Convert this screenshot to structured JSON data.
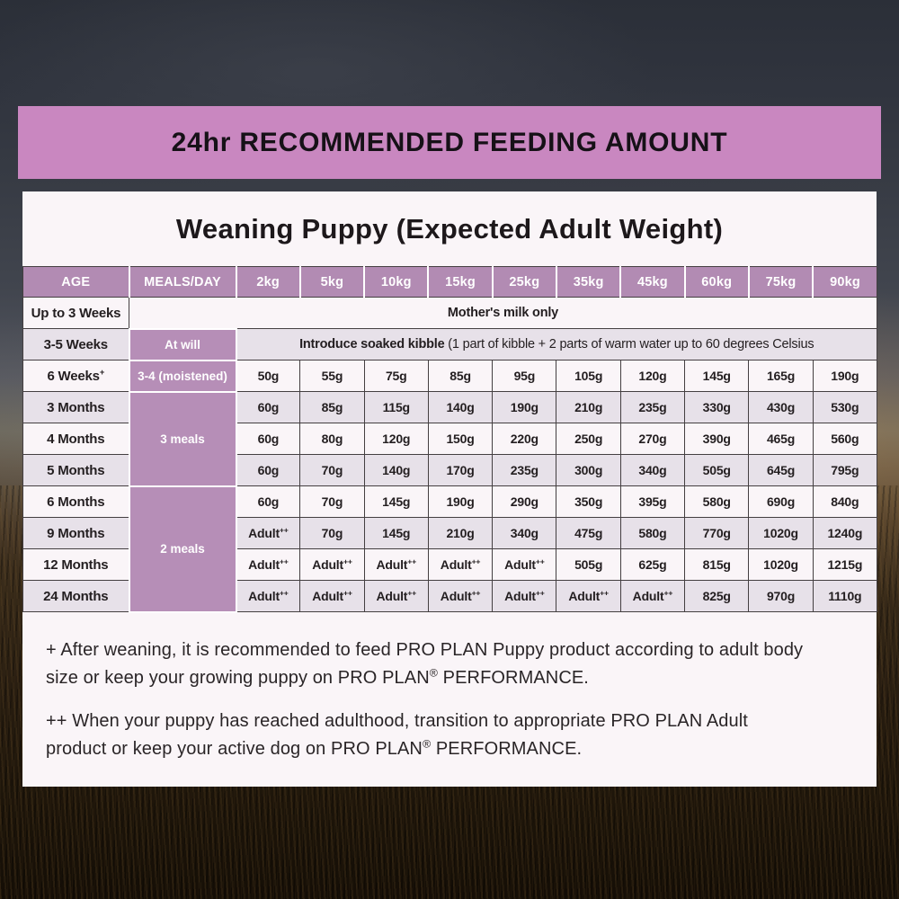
{
  "banner": {
    "title": "24hr RECOMMENDED FEEDING AMOUNT"
  },
  "card": {
    "title": "Weaning Puppy (Expected Adult Weight)",
    "table": {
      "headers": [
        "AGE",
        "MEALS/DAY",
        "2kg",
        "5kg",
        "10kg",
        "15kg",
        "25kg",
        "35kg",
        "45kg",
        "60kg",
        "75kg",
        "90kg"
      ],
      "body_rows": [
        {
          "type": "milk",
          "age": "Up to 3 Weeks",
          "note": "Mother's milk only"
        },
        {
          "type": "kibble",
          "age": "3-5 Weeks",
          "meals": "At will",
          "note_bold": "Introduce soaked kibble",
          "note_rest": " (1 part of kibble + 2 parts of warm water up to 60 degrees Celsius"
        },
        {
          "type": "data",
          "age": "6 Weeks",
          "age_sup": "+",
          "meals": "3-4 (moistened)",
          "meals_rowspan": 1,
          "values": [
            "50g",
            "55g",
            "75g",
            "85g",
            "95g",
            "105g",
            "120g",
            "145g",
            "165g",
            "190g"
          ]
        },
        {
          "type": "data",
          "age": "3 Months",
          "meals": "3 meals",
          "meals_rowspan": 3,
          "values": [
            "60g",
            "85g",
            "115g",
            "140g",
            "190g",
            "210g",
            "235g",
            "330g",
            "430g",
            "530g"
          ]
        },
        {
          "type": "data",
          "age": "4 Months",
          "values": [
            "60g",
            "80g",
            "120g",
            "150g",
            "220g",
            "250g",
            "270g",
            "390g",
            "465g",
            "560g"
          ]
        },
        {
          "type": "data",
          "age": "5 Months",
          "values": [
            "60g",
            "70g",
            "140g",
            "170g",
            "235g",
            "300g",
            "340g",
            "505g",
            "645g",
            "795g"
          ]
        },
        {
          "type": "data",
          "age": "6 Months",
          "meals": "2 meals",
          "meals_rowspan": 4,
          "values": [
            "60g",
            "70g",
            "145g",
            "190g",
            "290g",
            "350g",
            "395g",
            "580g",
            "690g",
            "840g"
          ]
        },
        {
          "type": "data",
          "age": "9 Months",
          "values": [
            "Adult++",
            "70g",
            "145g",
            "210g",
            "340g",
            "475g",
            "580g",
            "770g",
            "1020g",
            "1240g"
          ]
        },
        {
          "type": "data",
          "age": "12 Months",
          "values": [
            "Adult++",
            "Adult++",
            "Adult++",
            "Adult++",
            "Adult++",
            "505g",
            "625g",
            "815g",
            "1020g",
            "1215g"
          ]
        },
        {
          "type": "data",
          "age": "24 Months",
          "values": [
            "Adult++",
            "Adult++",
            "Adult++",
            "Adult++",
            "Adult++",
            "Adult++",
            "Adult++",
            "825g",
            "970g",
            "1110g"
          ]
        }
      ]
    },
    "footnotes": [
      {
        "lead": "+ After weaning, it is recommended to feed PRO PLAN Puppy product according to adult body size or keep your growing puppy on PRO PLAN",
        "sup": "®",
        "tail": " PERFORMANCE."
      },
      {
        "lead": "++ When your puppy has reached adulthood, transition to appropriate PRO PLAN Adult product or keep your active dog on PRO PLAN",
        "sup": "®",
        "tail": " PERFORMANCE."
      }
    ]
  },
  "colors": {
    "banner_bg": "#c987c0",
    "table_header_bg": "#b28bb3",
    "meals_cell_bg": "#b68eb7",
    "card_bg": "#faf5f8",
    "row_alt_bg": "#e7e1e9",
    "grid_border": "#443f41",
    "text": "#231e20"
  }
}
